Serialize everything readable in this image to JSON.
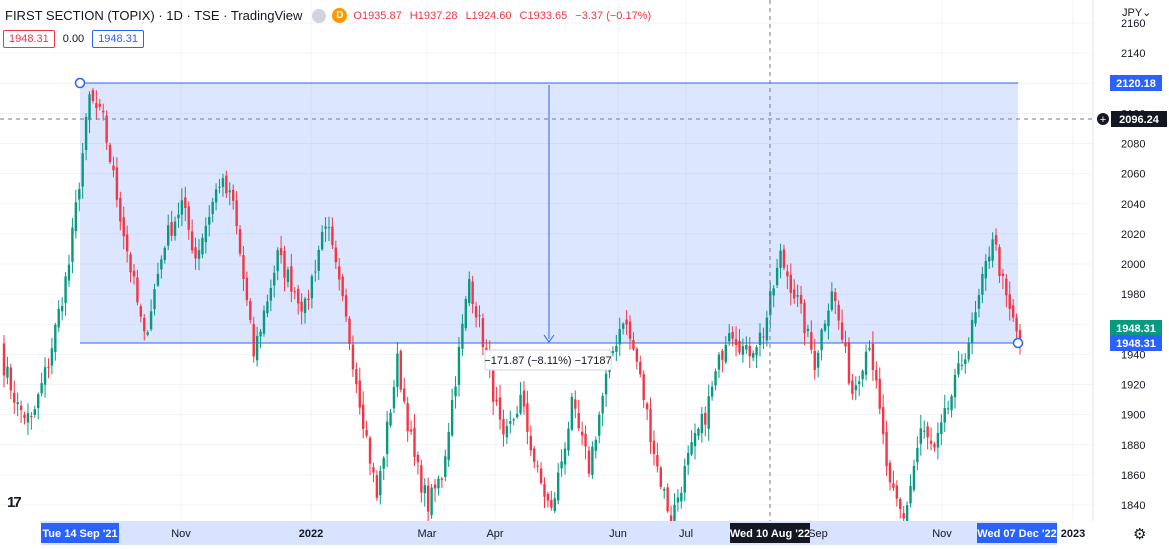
{
  "header": {
    "title": "FIRST SECTION (TOPIX) · 1D · TSE · TradingView",
    "badge_letter": "D",
    "open": "O1935.87",
    "high": "H1937.28",
    "low": "L1924.60",
    "close": "C1933.65",
    "change": "−3.37 (−0.17%)"
  },
  "badges": {
    "bid": "1948.31",
    "spread": "0.00",
    "ask": "1948.31"
  },
  "currency": "JPY⌄",
  "colors": {
    "up": "#089981",
    "down": "#f23645",
    "accent": "#2962ff",
    "range_fill": "#2962ff"
  },
  "icons": {
    "logo": "tradingview-logo-icon",
    "settings": "gear-icon",
    "add_alert": "plus-circle-icon"
  },
  "measure": {
    "label": "−171.87 (−8.11%) −17187"
  },
  "price_labels": {
    "range_top": "2120.18",
    "crosshair": "2096.24",
    "last_price": "1948.31",
    "range_bottom": "1948.31"
  },
  "crosshair_x_label": "Wed 10 Aug '22",
  "range_start_label": "Tue 14 Sep '21",
  "range_end_label": "Wed 07 Dec '22",
  "chart_data": {
    "type": "candlestick",
    "yaxis": {
      "ticks": [
        1840,
        1860,
        1880,
        1900,
        1920,
        1940,
        1960,
        1980,
        2000,
        2020,
        2040,
        2060,
        2080,
        2100,
        2120,
        2140,
        2160
      ],
      "range": [
        1828,
        2168
      ]
    },
    "x_ticks": [
      "Nov",
      "2022",
      "Mar",
      "Apr",
      "Jun",
      "Jul",
      "Sep",
      "Nov",
      "2023"
    ],
    "ranges": [
      {
        "start": 1940,
        "end": 1905,
        "n": 5
      },
      {
        "start": 1905,
        "end": 1895,
        "n": 4
      },
      {
        "start": 1895,
        "end": 1935,
        "n": 5
      },
      {
        "start": 1935,
        "end": 2000,
        "n": 6
      },
      {
        "start": 2000,
        "end": 2110,
        "n": 6
      },
      {
        "start": 2110,
        "end": 2095,
        "n": 4
      },
      {
        "start": 2095,
        "end": 2045,
        "n": 4
      },
      {
        "start": 2045,
        "end": 1950,
        "n": 8
      },
      {
        "start": 1950,
        "end": 2015,
        "n": 6
      },
      {
        "start": 2015,
        "end": 2040,
        "n": 5
      },
      {
        "start": 2040,
        "end": 2005,
        "n": 4
      },
      {
        "start": 2005,
        "end": 2055,
        "n": 7
      },
      {
        "start": 2055,
        "end": 2040,
        "n": 4
      },
      {
        "start": 2040,
        "end": 1940,
        "n": 6
      },
      {
        "start": 1940,
        "end": 2005,
        "n": 7
      },
      {
        "start": 2005,
        "end": 1970,
        "n": 8
      },
      {
        "start": 1970,
        "end": 2030,
        "n": 6
      },
      {
        "start": 2030,
        "end": 1950,
        "n": 7
      },
      {
        "start": 1950,
        "end": 1845,
        "n": 8
      },
      {
        "start": 1845,
        "end": 1935,
        "n": 6
      },
      {
        "start": 1935,
        "end": 1870,
        "n": 5
      },
      {
        "start": 1870,
        "end": 1840,
        "n": 4
      },
      {
        "start": 1840,
        "end": 1860,
        "n": 4
      },
      {
        "start": 1860,
        "end": 1990,
        "n": 8
      },
      {
        "start": 1990,
        "end": 1950,
        "n": 4
      },
      {
        "start": 1950,
        "end": 1880,
        "n": 6
      },
      {
        "start": 1880,
        "end": 1910,
        "n": 5
      },
      {
        "start": 1910,
        "end": 1860,
        "n": 5
      },
      {
        "start": 1860,
        "end": 1835,
        "n": 4
      },
      {
        "start": 1835,
        "end": 1905,
        "n": 6
      },
      {
        "start": 1905,
        "end": 1865,
        "n": 5
      },
      {
        "start": 1865,
        "end": 1935,
        "n": 6
      },
      {
        "start": 1935,
        "end": 1965,
        "n": 4
      },
      {
        "start": 1965,
        "end": 1935,
        "n": 4
      },
      {
        "start": 1935,
        "end": 1865,
        "n": 6
      },
      {
        "start": 1865,
        "end": 1830,
        "n": 4
      },
      {
        "start": 1830,
        "end": 1870,
        "n": 5
      },
      {
        "start": 1870,
        "end": 1900,
        "n": 5
      },
      {
        "start": 1900,
        "end": 1960,
        "n": 7
      },
      {
        "start": 1960,
        "end": 1940,
        "n": 5
      },
      {
        "start": 1940,
        "end": 1955,
        "n": 5
      },
      {
        "start": 1955,
        "end": 2005,
        "n": 5
      },
      {
        "start": 2005,
        "end": 1975,
        "n": 5
      },
      {
        "start": 1975,
        "end": 1935,
        "n": 5
      },
      {
        "start": 1935,
        "end": 1985,
        "n": 5
      },
      {
        "start": 1985,
        "end": 1915,
        "n": 6
      },
      {
        "start": 1915,
        "end": 1950,
        "n": 5
      },
      {
        "start": 1950,
        "end": 1850,
        "n": 6
      },
      {
        "start": 1850,
        "end": 1830,
        "n": 4
      },
      {
        "start": 1830,
        "end": 1890,
        "n": 5
      },
      {
        "start": 1890,
        "end": 1875,
        "n": 4
      },
      {
        "start": 1875,
        "end": 1920,
        "n": 6
      },
      {
        "start": 1920,
        "end": 1965,
        "n": 6
      },
      {
        "start": 1965,
        "end": 2020,
        "n": 5
      },
      {
        "start": 2020,
        "end": 1975,
        "n": 4
      },
      {
        "start": 1975,
        "end": 1948,
        "n": 4
      }
    ]
  }
}
